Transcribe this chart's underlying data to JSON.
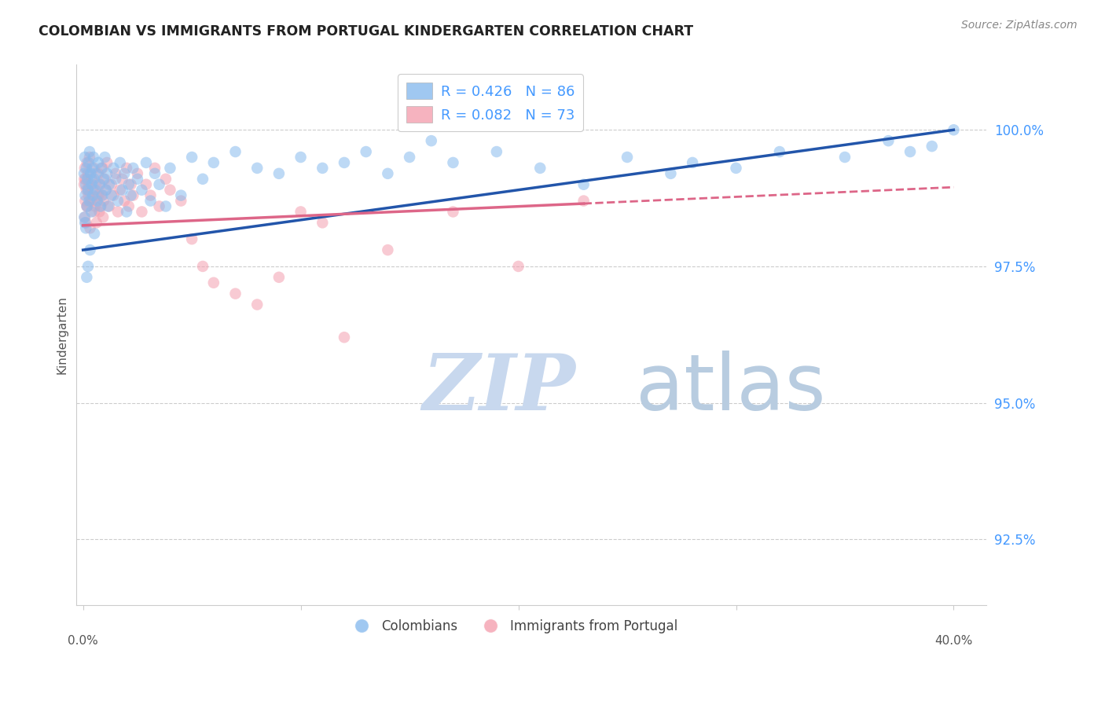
{
  "title": "COLOMBIAN VS IMMIGRANTS FROM PORTUGAL KINDERGARTEN CORRELATION CHART",
  "source": "Source: ZipAtlas.com",
  "ylabel": "Kindergarten",
  "ylim": [
    91.3,
    101.2
  ],
  "xlim": [
    -0.3,
    41.5
  ],
  "yticks": [
    92.5,
    95.0,
    97.5,
    100.0
  ],
  "ytick_labels": [
    "92.5%",
    "95.0%",
    "97.5%",
    "100.0%"
  ],
  "blue_color": "#88bbee",
  "pink_color": "#f4a0b0",
  "blue_line_color": "#2255aa",
  "pink_line_color": "#dd6688",
  "legend_label_colombians": "Colombians",
  "legend_label_portugal": "Immigrants from Portugal",
  "watermark_zip": "ZIP",
  "watermark_atlas": "atlas",
  "watermark_color_zip": "#c8d8ee",
  "watermark_color_atlas": "#b8cce0",
  "blue_line_x0": 0,
  "blue_line_y0": 97.8,
  "blue_line_x1": 40,
  "blue_line_y1": 100.0,
  "pink_line_x0": 0,
  "pink_line_y0": 98.25,
  "pink_line_x1": 23,
  "pink_line_y1": 98.65,
  "pink_dash_x0": 23,
  "pink_dash_y0": 98.65,
  "pink_dash_x1": 40,
  "pink_dash_y1": 98.95,
  "blue_scatter_x": [
    0.05,
    0.08,
    0.1,
    0.12,
    0.15,
    0.18,
    0.2,
    0.22,
    0.25,
    0.28,
    0.3,
    0.35,
    0.38,
    0.4,
    0.42,
    0.45,
    0.48,
    0.5,
    0.55,
    0.6,
    0.65,
    0.7,
    0.75,
    0.8,
    0.85,
    0.9,
    0.95,
    1.0,
    1.05,
    1.1,
    1.15,
    1.2,
    1.3,
    1.4,
    1.5,
    1.6,
    1.7,
    1.8,
    1.9,
    2.0,
    2.1,
    2.2,
    2.3,
    2.5,
    2.7,
    2.9,
    3.1,
    3.3,
    3.5,
    3.8,
    4.0,
    4.5,
    5.0,
    5.5,
    6.0,
    7.0,
    8.0,
    9.0,
    10.0,
    11.0,
    12.0,
    13.0,
    14.0,
    15.0,
    16.0,
    17.0,
    19.0,
    21.0,
    23.0,
    25.0,
    27.0,
    28.0,
    30.0,
    32.0,
    35.0,
    37.0,
    38.0,
    39.0,
    40.0,
    0.06,
    0.09,
    0.13,
    0.17,
    0.23,
    0.32,
    0.52
  ],
  "blue_scatter_y": [
    99.2,
    99.5,
    98.8,
    99.0,
    99.3,
    98.6,
    99.1,
    98.9,
    99.4,
    98.7,
    99.6,
    99.2,
    98.5,
    99.0,
    99.3,
    98.8,
    99.5,
    99.1,
    98.9,
    99.2,
    98.7,
    99.4,
    99.0,
    98.6,
    99.3,
    98.8,
    99.1,
    99.5,
    98.9,
    99.2,
    98.6,
    99.0,
    98.8,
    99.3,
    99.1,
    98.7,
    99.4,
    98.9,
    99.2,
    98.5,
    99.0,
    98.8,
    99.3,
    99.1,
    98.9,
    99.4,
    98.7,
    99.2,
    99.0,
    98.6,
    99.3,
    98.8,
    99.5,
    99.1,
    99.4,
    99.6,
    99.3,
    99.2,
    99.5,
    99.3,
    99.4,
    99.6,
    99.2,
    99.5,
    99.8,
    99.4,
    99.6,
    99.3,
    99.0,
    99.5,
    99.2,
    99.4,
    99.3,
    99.6,
    99.5,
    99.8,
    99.6,
    99.7,
    100.0,
    98.4,
    98.3,
    98.2,
    97.3,
    97.5,
    97.8,
    98.1
  ],
  "pink_scatter_x": [
    0.05,
    0.08,
    0.1,
    0.12,
    0.15,
    0.18,
    0.2,
    0.22,
    0.25,
    0.28,
    0.3,
    0.35,
    0.4,
    0.45,
    0.5,
    0.55,
    0.6,
    0.65,
    0.7,
    0.75,
    0.8,
    0.85,
    0.9,
    0.95,
    1.0,
    1.05,
    1.1,
    1.2,
    1.3,
    1.4,
    1.5,
    1.6,
    1.7,
    1.8,
    1.9,
    2.0,
    2.1,
    2.2,
    2.3,
    2.5,
    2.7,
    2.9,
    3.1,
    3.3,
    3.5,
    3.8,
    4.0,
    4.5,
    5.0,
    5.5,
    6.0,
    7.0,
    8.0,
    9.0,
    10.0,
    11.0,
    12.0,
    14.0,
    17.0,
    20.0,
    23.0,
    0.06,
    0.09,
    0.13,
    0.17,
    0.23,
    0.32,
    0.42,
    0.52,
    0.62,
    0.72,
    0.82,
    0.92
  ],
  "pink_scatter_y": [
    99.0,
    99.3,
    98.7,
    99.1,
    98.9,
    99.4,
    98.6,
    99.2,
    98.8,
    99.0,
    99.5,
    98.7,
    99.1,
    98.9,
    99.3,
    98.6,
    99.0,
    98.8,
    99.2,
    98.5,
    99.0,
    98.8,
    99.3,
    98.7,
    99.1,
    98.9,
    99.4,
    98.6,
    99.0,
    98.8,
    99.2,
    98.5,
    98.9,
    99.1,
    98.7,
    99.3,
    98.6,
    99.0,
    98.8,
    99.2,
    98.5,
    99.0,
    98.8,
    99.3,
    98.6,
    99.1,
    98.9,
    98.7,
    98.0,
    97.5,
    97.2,
    97.0,
    96.8,
    97.3,
    98.5,
    98.3,
    96.2,
    97.8,
    98.5,
    97.5,
    98.7,
    99.1,
    98.4,
    98.3,
    98.6,
    98.9,
    98.2,
    98.7,
    98.5,
    98.3,
    98.8,
    98.6,
    98.4
  ]
}
